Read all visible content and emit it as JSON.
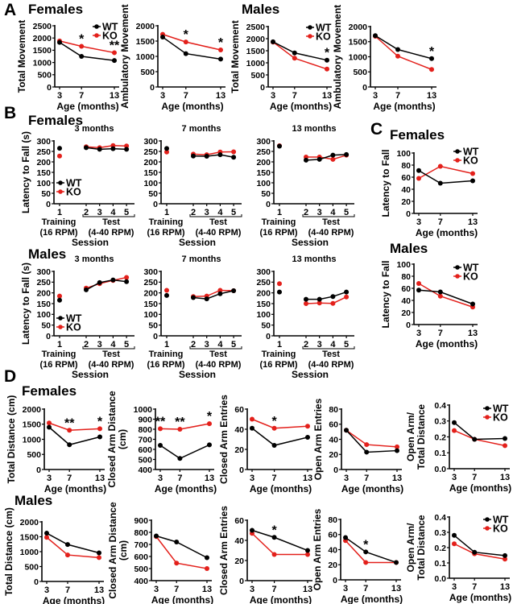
{
  "headings": {
    "A": "A",
    "B": "B",
    "C": "C",
    "D": "D",
    "A_females": "Females",
    "A_males": "Males",
    "B_females": "Females",
    "B_males": "Males",
    "C_females": "Females",
    "C_males": "Males",
    "D_females": "Females",
    "D_males": "Males"
  },
  "colors": {
    "WT": "#000000",
    "KO": "#e3201b"
  },
  "legend": [
    "WT",
    "KO"
  ],
  "session_labels": {
    "training": [
      "Training",
      "(16 RPM)"
    ],
    "test": [
      "Test",
      "(4-40 RPM)"
    ],
    "xlabel": "Session"
  },
  "chart_data": [
    {
      "panel": "A",
      "group": "Females",
      "type": "line",
      "ylabel": [
        "Total Movement"
      ],
      "xlabel": "Age (months)",
      "x": [
        3,
        7,
        13
      ],
      "xticks": [
        "3",
        "7",
        "13"
      ],
      "ylim": [
        0,
        2500
      ],
      "yticks": [
        "0",
        "500",
        "1000",
        "1500",
        "2000",
        "2500"
      ],
      "legend": true,
      "series": [
        {
          "name": "WT",
          "values": [
            1820,
            1250,
            1080
          ]
        },
        {
          "name": "KO",
          "values": [
            1880,
            1660,
            1400
          ]
        }
      ],
      "annotations": [
        {
          "x": 7,
          "text": "*"
        },
        {
          "x": 13,
          "text": "**"
        }
      ]
    },
    {
      "panel": "A",
      "group": "Females",
      "type": "line",
      "ylabel": [
        "Ambulatory Movement"
      ],
      "xlabel": "Age (months)",
      "x": [
        3,
        7,
        13
      ],
      "xticks": [
        "3",
        "7",
        "13"
      ],
      "ylim": [
        0,
        2000
      ],
      "yticks": [
        "0",
        "500",
        "1000",
        "1500",
        "2000"
      ],
      "legend": false,
      "series": [
        {
          "name": "WT",
          "values": [
            1630,
            1090,
            910
          ]
        },
        {
          "name": "KO",
          "values": [
            1720,
            1470,
            1210
          ]
        }
      ],
      "annotations": [
        {
          "x": 7,
          "text": "*"
        },
        {
          "x": 13,
          "text": "*"
        }
      ]
    },
    {
      "panel": "A",
      "group": "Males",
      "type": "line",
      "ylabel": [
        "Total Movement"
      ],
      "xlabel": "Age (months)",
      "x": [
        3,
        7,
        13
      ],
      "xticks": [
        "3",
        "7",
        "13"
      ],
      "ylim": [
        0,
        2500
      ],
      "yticks": [
        "0",
        "500",
        "1000",
        "1500",
        "2000",
        "2500"
      ],
      "legend": true,
      "series": [
        {
          "name": "WT",
          "values": [
            1870,
            1410,
            1110
          ]
        },
        {
          "name": "KO",
          "values": [
            1860,
            1190,
            740
          ]
        }
      ],
      "annotations": [
        {
          "x": 13,
          "text": "*"
        }
      ]
    },
    {
      "panel": "A",
      "group": "Males",
      "type": "line",
      "ylabel": [
        "Ambulatory Movement"
      ],
      "xlabel": "Age (months)",
      "x": [
        3,
        7,
        13
      ],
      "xticks": [
        "3",
        "7",
        "13"
      ],
      "ylim": [
        0,
        2000
      ],
      "yticks": [
        "0",
        "500",
        "1000",
        "1500",
        "2000"
      ],
      "legend": false,
      "series": [
        {
          "name": "WT",
          "values": [
            1700,
            1240,
            940
          ]
        },
        {
          "name": "KO",
          "values": [
            1680,
            1020,
            580
          ]
        }
      ],
      "annotations": [
        {
          "x": 13,
          "text": "*"
        }
      ]
    },
    {
      "panel": "B",
      "group": "Females",
      "type": "session",
      "title": "3 months",
      "ylabel": [
        "Latency to Fall (s)"
      ],
      "x": [
        1,
        2,
        3,
        4,
        5
      ],
      "xticks": [
        "1",
        "2",
        "3",
        "4",
        "5"
      ],
      "ylim": [
        0,
        300
      ],
      "yticks": [
        "0",
        "50",
        "100",
        "150",
        "200",
        "250",
        "300"
      ],
      "legend": true,
      "series": [
        {
          "name": "WT",
          "values": [
            265,
            268,
            260,
            263,
            260
          ]
        },
        {
          "name": "KO",
          "values": [
            228,
            272,
            268,
            278,
            276
          ]
        }
      ],
      "annotations": []
    },
    {
      "panel": "B",
      "group": "Females",
      "type": "session",
      "title": "7 months",
      "ylabel": [],
      "x": [
        1,
        2,
        3,
        4,
        5
      ],
      "xticks": [
        "1",
        "2",
        "3",
        "4",
        "5"
      ],
      "ylim": [
        0,
        300
      ],
      "yticks": [
        "0",
        "50",
        "100",
        "150",
        "200",
        "250",
        "300"
      ],
      "legend": false,
      "series": [
        {
          "name": "WT",
          "values": [
            264,
            228,
            227,
            234,
            222
          ]
        },
        {
          "name": "KO",
          "values": [
            247,
            237,
            234,
            247,
            248
          ]
        }
      ],
      "annotations": []
    },
    {
      "panel": "B",
      "group": "Females",
      "type": "session",
      "title": "13 months",
      "ylabel": [],
      "x": [
        1,
        2,
        3,
        4,
        5
      ],
      "xticks": [
        "1",
        "2",
        "3",
        "4",
        "5"
      ],
      "ylim": [
        0,
        300
      ],
      "yticks": [
        "0",
        "50",
        "100",
        "150",
        "200",
        "250",
        "300"
      ],
      "legend": false,
      "series": [
        {
          "name": "WT",
          "values": [
            275,
            208,
            212,
            232,
            235
          ]
        },
        {
          "name": "KO",
          "values": [
            277,
            223,
            223,
            212,
            232
          ]
        }
      ],
      "annotations": []
    },
    {
      "panel": "B",
      "group": "Males",
      "type": "session",
      "title": "3 months",
      "ylabel": [
        "Latency to Fall (s)"
      ],
      "x": [
        1,
        2,
        3,
        4,
        5
      ],
      "xticks": [
        "1",
        "2",
        "3",
        "4",
        "5"
      ],
      "ylim": [
        0,
        300
      ],
      "yticks": [
        "0",
        "50",
        "100",
        "150",
        "200",
        "250",
        "300"
      ],
      "legend": true,
      "series": [
        {
          "name": "WT",
          "values": [
            166,
            214,
            248,
            260,
            252
          ]
        },
        {
          "name": "KO",
          "values": [
            185,
            222,
            243,
            258,
            272
          ]
        }
      ],
      "annotations": []
    },
    {
      "panel": "B",
      "group": "Males",
      "type": "session",
      "title": "7 months",
      "ylabel": [],
      "x": [
        1,
        2,
        3,
        4,
        5
      ],
      "xticks": [
        "1",
        "2",
        "3",
        "4",
        "5"
      ],
      "ylim": [
        0,
        300
      ],
      "yticks": [
        "0",
        "50",
        "100",
        "150",
        "200",
        "250",
        "300"
      ],
      "legend": false,
      "series": [
        {
          "name": "WT",
          "values": [
            188,
            178,
            172,
            196,
            210
          ]
        },
        {
          "name": "KO",
          "values": [
            212,
            183,
            185,
            212,
            210
          ]
        }
      ],
      "annotations": []
    },
    {
      "panel": "B",
      "group": "Males",
      "type": "session",
      "title": "13 months",
      "ylabel": [],
      "x": [
        1,
        2,
        3,
        4,
        5
      ],
      "xticks": [
        "1",
        "2",
        "3",
        "4",
        "5"
      ],
      "ylim": [
        0,
        300
      ],
      "yticks": [
        "0",
        "50",
        "100",
        "150",
        "200",
        "250",
        "300"
      ],
      "legend": false,
      "series": [
        {
          "name": "WT",
          "values": [
            204,
            170,
            170,
            183,
            204
          ]
        },
        {
          "name": "KO",
          "values": [
            243,
            150,
            153,
            151,
            181
          ]
        }
      ],
      "annotations": []
    },
    {
      "panel": "C",
      "group": "Females",
      "type": "line",
      "ylabel": [
        "Latency to Fall"
      ],
      "xlabel": "Age (months)",
      "x": [
        3,
        7,
        13
      ],
      "xticks": [
        "3",
        "7",
        "13"
      ],
      "ylim": [
        0,
        100
      ],
      "yticks": [
        "0",
        "20",
        "40",
        "60",
        "80",
        "100"
      ],
      "legend": true,
      "series": [
        {
          "name": "WT",
          "values": [
            71,
            50,
            54
          ]
        },
        {
          "name": "KO",
          "values": [
            58,
            78,
            66
          ]
        }
      ],
      "annotations": []
    },
    {
      "panel": "C",
      "group": "Males",
      "type": "line",
      "ylabel": [
        "Latency to Fall"
      ],
      "xlabel": "Age (months)",
      "x": [
        3,
        7,
        13
      ],
      "xticks": [
        "3",
        "7",
        "13"
      ],
      "ylim": [
        0,
        100
      ],
      "yticks": [
        "0",
        "20",
        "40",
        "60",
        "80",
        "100"
      ],
      "legend": true,
      "series": [
        {
          "name": "WT",
          "values": [
            57,
            54,
            34
          ]
        },
        {
          "name": "KO",
          "values": [
            68,
            47,
            29
          ]
        }
      ],
      "annotations": []
    },
    {
      "panel": "D",
      "group": "Females",
      "type": "line",
      "ylabel": [
        "Total Distance (cm)"
      ],
      "xlabel": "Age (months)",
      "x": [
        3,
        7,
        13
      ],
      "xticks": [
        "3",
        "7",
        "13"
      ],
      "ylim": [
        0,
        2000
      ],
      "yticks": [
        "0",
        "500",
        "1000",
        "1500",
        "2000"
      ],
      "legend": false,
      "series": [
        {
          "name": "WT",
          "values": [
            1400,
            820,
            1080
          ]
        },
        {
          "name": "KO",
          "values": [
            1540,
            1300,
            1350
          ]
        }
      ],
      "annotations": [
        {
          "x": 7,
          "text": "**"
        },
        {
          "x": 13,
          "text": "*"
        }
      ]
    },
    {
      "panel": "D",
      "group": "Females",
      "type": "line",
      "ylabel": [
        "Closed Arm Distance",
        "(cm)"
      ],
      "xlabel": "Age (months)",
      "x": [
        3,
        7,
        13
      ],
      "xticks": [
        "3",
        "7",
        "13"
      ],
      "ylim": [
        400,
        1000
      ],
      "yticks": [
        "400",
        "500",
        "600",
        "700",
        "800",
        "900",
        "1000"
      ],
      "legend": false,
      "series": [
        {
          "name": "WT",
          "values": [
            640,
            510,
            645
          ]
        },
        {
          "name": "KO",
          "values": [
            805,
            800,
            855
          ]
        }
      ],
      "annotations": [
        {
          "x": 3,
          "text": "**"
        },
        {
          "x": 7,
          "text": "**"
        },
        {
          "x": 13,
          "text": "*"
        }
      ]
    },
    {
      "panel": "D",
      "group": "Females",
      "type": "line",
      "ylabel": [
        "Closed  Arm  Entries"
      ],
      "xlabel": "Age (months)",
      "x": [
        3,
        7,
        13
      ],
      "xticks": [
        "3",
        "7",
        "13"
      ],
      "ylim": [
        0,
        60
      ],
      "yticks": [
        "0",
        "20",
        "40",
        "60"
      ],
      "legend": false,
      "series": [
        {
          "name": "WT",
          "values": [
            41,
            24,
            32
          ]
        },
        {
          "name": "KO",
          "values": [
            50,
            41,
            43
          ]
        }
      ],
      "annotations": [
        {
          "x": 7,
          "text": "*"
        }
      ]
    },
    {
      "panel": "D",
      "group": "Females",
      "type": "line",
      "ylabel": [
        "Open Arm Entries"
      ],
      "xlabel": "Age (months)",
      "x": [
        3,
        7,
        13
      ],
      "xticks": [
        "3",
        "7",
        "13"
      ],
      "ylim": [
        0,
        80
      ],
      "yticks": [
        "0",
        "20",
        "40",
        "60",
        "80"
      ],
      "legend": false,
      "series": [
        {
          "name": "WT",
          "values": [
            52,
            23,
            25
          ]
        },
        {
          "name": "KO",
          "values": [
            52,
            33,
            30
          ]
        }
      ],
      "annotations": []
    },
    {
      "panel": "D",
      "group": "Females",
      "type": "line",
      "ylabel": [
        "Open Arm/",
        "Total Distance"
      ],
      "xlabel": "Age (months)",
      "x": [
        3,
        7,
        13
      ],
      "xticks": [
        "3",
        "7",
        "13"
      ],
      "ylim": [
        0,
        0.4
      ],
      "yticks": [
        "0.0",
        "0.1",
        "0.2",
        "0.3",
        "0.4"
      ],
      "legend": true,
      "series": [
        {
          "name": "WT",
          "values": [
            0.29,
            0.185,
            0.19
          ]
        },
        {
          "name": "KO",
          "values": [
            0.24,
            0.185,
            0.145
          ]
        }
      ],
      "annotations": []
    },
    {
      "panel": "D",
      "group": "Males",
      "type": "line",
      "ylabel": [
        "Total Distance (cm)"
      ],
      "xlabel": "Age (months)",
      "x": [
        3,
        7,
        13
      ],
      "xticks": [
        "3",
        "7",
        "13"
      ],
      "ylim": [
        0,
        2000
      ],
      "yticks": [
        "0",
        "500",
        "1000",
        "1500",
        "2000"
      ],
      "legend": false,
      "series": [
        {
          "name": "WT",
          "values": [
            1620,
            1240,
            960
          ]
        },
        {
          "name": "KO",
          "values": [
            1480,
            890,
            800
          ]
        }
      ],
      "annotations": []
    },
    {
      "panel": "D",
      "group": "Males",
      "type": "line",
      "ylabel": [
        "Closed Arm Distance",
        "(cm)"
      ],
      "xlabel": "Age (months)",
      "x": [
        3,
        7,
        13
      ],
      "xticks": [
        "3",
        "7",
        "13"
      ],
      "ylim": [
        400,
        900
      ],
      "yticks": [
        "400",
        "500",
        "600",
        "700",
        "800",
        "900"
      ],
      "legend": false,
      "series": [
        {
          "name": "WT",
          "values": [
            770,
            720,
            590
          ]
        },
        {
          "name": "KO",
          "values": [
            765,
            545,
            500
          ]
        }
      ],
      "annotations": []
    },
    {
      "panel": "D",
      "group": "Males",
      "type": "line",
      "ylabel": [
        "Closed  Arm  Entries"
      ],
      "xlabel": "Age (months)",
      "x": [
        3,
        7,
        13
      ],
      "xticks": [
        "3",
        "7",
        "13"
      ],
      "ylim": [
        0,
        60
      ],
      "yticks": [
        "0",
        "20",
        "40",
        "60"
      ],
      "legend": false,
      "series": [
        {
          "name": "WT",
          "values": [
            50,
            43,
            30
          ]
        },
        {
          "name": "KO",
          "values": [
            47,
            26,
            26
          ]
        }
      ],
      "annotations": [
        {
          "x": 7,
          "text": "*"
        }
      ]
    },
    {
      "panel": "D",
      "group": "Males",
      "type": "line",
      "ylabel": [
        "Open Arm  Entries"
      ],
      "xlabel": "Age (months)",
      "x": [
        3,
        7,
        13
      ],
      "xticks": [
        "3",
        "7",
        "13"
      ],
      "ylim": [
        0,
        80
      ],
      "yticks": [
        "0",
        "20",
        "40",
        "60",
        "80"
      ],
      "legend": false,
      "series": [
        {
          "name": "WT",
          "values": [
            56,
            37,
            23
          ]
        },
        {
          "name": "KO",
          "values": [
            52,
            23,
            23
          ]
        }
      ],
      "annotations": [
        {
          "x": 7,
          "text": "*"
        }
      ]
    },
    {
      "panel": "D",
      "group": "Males",
      "type": "line",
      "ylabel": [
        "Open Arm/",
        "Total Distance"
      ],
      "xlabel": "Age (months)",
      "x": [
        3,
        7,
        13
      ],
      "xticks": [
        "3",
        "7",
        "13"
      ],
      "ylim": [
        0,
        0.4
      ],
      "yticks": [
        "0.0",
        "0.1",
        "0.2",
        "0.3",
        "0.4"
      ],
      "legend": true,
      "series": [
        {
          "name": "WT",
          "values": [
            0.28,
            0.17,
            0.148
          ]
        },
        {
          "name": "KO",
          "values": [
            0.225,
            0.16,
            0.125
          ]
        }
      ],
      "annotations": []
    }
  ]
}
